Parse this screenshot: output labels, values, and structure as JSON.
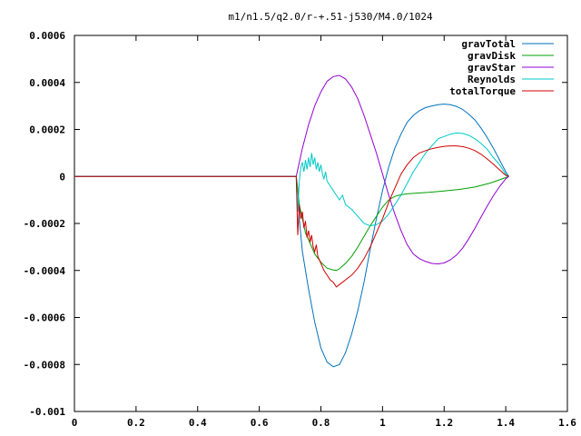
{
  "chart_data": {
    "type": "line",
    "title": "m1/n1.5/q2.0/r-+.51-j530/M4.0/1024",
    "xlabel": "",
    "ylabel": "",
    "xlim": [
      0,
      1.6
    ],
    "ylim": [
      -0.001,
      0.0006
    ],
    "grid": false,
    "legend_position": "top-right",
    "x_ticks": [
      0,
      0.2,
      0.4,
      0.6,
      0.8,
      1.0,
      1.2,
      1.4,
      1.6
    ],
    "x_tick_labels": [
      "0",
      "0.2",
      "0.4",
      "0.6",
      "0.8",
      "1",
      "1.2",
      "1.4",
      "1.6"
    ],
    "y_ticks": [
      -0.001,
      -0.0008,
      -0.0006,
      -0.0004,
      -0.0002,
      0,
      0.0002,
      0.0004,
      0.0006
    ],
    "y_tick_labels": [
      "-0.001",
      "-0.0008",
      "-0.0006",
      "-0.0004",
      "-0.0002",
      "0",
      "0.0002",
      "0.0004",
      "0.0006"
    ],
    "series": [
      {
        "name": "gravTotal",
        "color": "#0072bd",
        "x": [
          0,
          0.72,
          0.725,
          0.73,
          0.74,
          0.76,
          0.78,
          0.8,
          0.82,
          0.84,
          0.86,
          0.88,
          0.9,
          0.92,
          0.94,
          0.96,
          0.98,
          1.0,
          1.02,
          1.04,
          1.06,
          1.08,
          1.1,
          1.12,
          1.14,
          1.16,
          1.18,
          1.2,
          1.22,
          1.24,
          1.26,
          1.28,
          1.3,
          1.32,
          1.34,
          1.36,
          1.38,
          1.4,
          1.41
        ],
        "y": [
          0,
          0,
          -5e-05,
          -0.00018,
          -0.00032,
          -0.00048,
          -0.00062,
          -0.00073,
          -0.00079,
          -0.00081,
          -0.0008,
          -0.00075,
          -0.00067,
          -0.00057,
          -0.00045,
          -0.00031,
          -0.00018,
          -6e-05,
          4e-05,
          0.00012,
          0.00018,
          0.00023,
          0.00026,
          0.00028,
          0.000293,
          0.0003,
          0.000305,
          0.000308,
          0.000305,
          0.000298,
          0.000285,
          0.000265,
          0.00024,
          0.000205,
          0.000165,
          0.00012,
          7e-05,
          2e-05,
          0
        ]
      },
      {
        "name": "gravDisk",
        "color": "#00a000",
        "x": [
          0,
          0.72,
          0.73,
          0.75,
          0.78,
          0.8,
          0.82,
          0.84,
          0.85,
          0.86,
          0.88,
          0.9,
          0.92,
          0.94,
          0.96,
          0.98,
          1.0,
          1.02,
          1.04,
          1.06,
          1.08,
          1.1,
          1.15,
          1.2,
          1.25,
          1.3,
          1.35,
          1.4,
          1.41
        ],
        "y": [
          0,
          0,
          -0.00012,
          -0.00024,
          -0.00033,
          -0.000365,
          -0.00039,
          -0.000398,
          -0.0004,
          -0.000393,
          -0.00037,
          -0.00034,
          -0.0003,
          -0.000255,
          -0.00021,
          -0.00017,
          -0.00013,
          -0.0001,
          -8.5e-05,
          -7.8e-05,
          -7.4e-05,
          -7.2e-05,
          -6.8e-05,
          -6.2e-05,
          -5.5e-05,
          -4.5e-05,
          -2.8e-05,
          -5e-06,
          0
        ]
      },
      {
        "name": "gravStar",
        "color": "#9400d3",
        "x": [
          0,
          0.72,
          0.725,
          0.74,
          0.76,
          0.78,
          0.8,
          0.82,
          0.84,
          0.86,
          0.88,
          0.9,
          0.92,
          0.94,
          0.96,
          0.98,
          1.0,
          1.02,
          1.04,
          1.06,
          1.08,
          1.1,
          1.12,
          1.14,
          1.16,
          1.18,
          1.2,
          1.22,
          1.24,
          1.26,
          1.28,
          1.3,
          1.32,
          1.34,
          1.36,
          1.38,
          1.4,
          1.41
        ],
        "y": [
          0,
          0,
          3e-05,
          0.00012,
          0.00022,
          0.0003,
          0.00036,
          0.000405,
          0.000425,
          0.00043,
          0.000415,
          0.00038,
          0.00033,
          0.00026,
          0.00018,
          0.0001,
          1e-05,
          -8e-05,
          -0.00016,
          -0.00023,
          -0.00029,
          -0.00033,
          -0.00035,
          -0.000362,
          -0.00037,
          -0.000372,
          -0.000368,
          -0.000355,
          -0.000335,
          -0.000305,
          -0.000265,
          -0.00022,
          -0.000172,
          -0.000125,
          -8.2e-05,
          -4.3e-05,
          -1e-05,
          0
        ]
      },
      {
        "name": "Reynolds",
        "color": "#00c8c8",
        "x": [
          0,
          0.72,
          0.725,
          0.73,
          0.735,
          0.74,
          0.745,
          0.75,
          0.755,
          0.76,
          0.765,
          0.77,
          0.775,
          0.78,
          0.785,
          0.79,
          0.795,
          0.8,
          0.805,
          0.81,
          0.815,
          0.82,
          0.83,
          0.84,
          0.85,
          0.86,
          0.87,
          0.88,
          0.89,
          0.9,
          0.92,
          0.94,
          0.96,
          0.98,
          1.0,
          1.02,
          1.04,
          1.06,
          1.08,
          1.1,
          1.12,
          1.14,
          1.16,
          1.18,
          1.2,
          1.22,
          1.24,
          1.26,
          1.28,
          1.3,
          1.32,
          1.34,
          1.36,
          1.38,
          1.4,
          1.41
        ],
        "y": [
          0,
          0,
          -0.00015,
          -2e-05,
          4e-05,
          6e-05,
          2e-05,
          7e-05,
          3e-05,
          8e-05,
          4e-05,
          0.0001,
          5e-05,
          8e-05,
          3e-05,
          6e-05,
          2e-05,
          5e-05,
          1e-05,
          -1e-05,
          2e-05,
          -2e-05,
          -4e-05,
          -6e-05,
          -8e-05,
          -0.0001,
          -8e-05,
          -0.00012,
          -0.00013,
          -0.00014,
          -0.00017,
          -0.0002,
          -0.00021,
          -0.000205,
          -0.00019,
          -0.00016,
          -0.00012,
          -8e-05,
          -3e-05,
          2e-05,
          6e-05,
          0.0001,
          0.00013,
          0.00016,
          0.00017,
          0.00018,
          0.000185,
          0.000183,
          0.000175,
          0.00016,
          0.00014,
          0.000115,
          8e-05,
          5e-05,
          1e-05,
          0
        ]
      },
      {
        "name": "totalTorque",
        "color": "#d00000",
        "x": [
          0,
          0.72,
          0.725,
          0.73,
          0.735,
          0.74,
          0.745,
          0.75,
          0.755,
          0.76,
          0.765,
          0.77,
          0.775,
          0.78,
          0.785,
          0.79,
          0.8,
          0.81,
          0.82,
          0.83,
          0.84,
          0.85,
          0.86,
          0.87,
          0.88,
          0.89,
          0.9,
          0.92,
          0.94,
          0.96,
          0.98,
          1.0,
          1.02,
          1.04,
          1.06,
          1.08,
          1.1,
          1.12,
          1.14,
          1.16,
          1.18,
          1.2,
          1.22,
          1.24,
          1.26,
          1.28,
          1.3,
          1.32,
          1.34,
          1.36,
          1.38,
          1.4,
          1.41
        ],
        "y": [
          0,
          0,
          -0.00025,
          -0.00012,
          -0.00018,
          -0.00015,
          -0.00022,
          -0.00019,
          -0.00026,
          -0.00023,
          -0.00028,
          -0.00025,
          -0.0003,
          -0.00032,
          -0.00029,
          -0.00034,
          -0.00037,
          -0.0004,
          -0.00042,
          -0.00044,
          -0.00045,
          -0.00047,
          -0.00046,
          -0.00045,
          -0.00044,
          -0.00043,
          -0.00042,
          -0.00039,
          -0.00035,
          -0.0003,
          -0.00024,
          -0.00018,
          -0.00011,
          -5e-05,
          1e-05,
          5e-05,
          8e-05,
          0.0001,
          0.00011,
          0.000118,
          0.000124,
          0.000128,
          0.00013,
          0.00013,
          0.000127,
          0.00012,
          0.00011,
          9.4e-05,
          7.4e-05,
          5.2e-05,
          2.8e-05,
          5e-06,
          0
        ]
      }
    ]
  }
}
